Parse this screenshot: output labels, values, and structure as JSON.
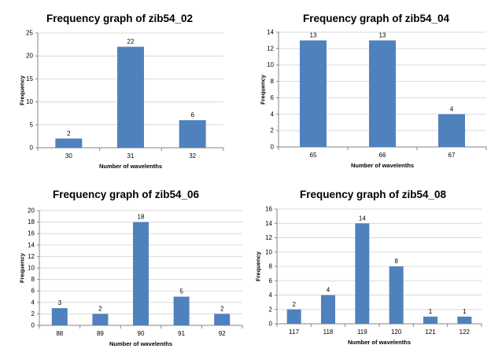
{
  "chart_data": [
    {
      "type": "bar",
      "title": "Frequency graph of zib54_02",
      "xlabel": "Number of wavelenths",
      "ylabel": "Frequency",
      "categories": [
        "30",
        "31",
        "32"
      ],
      "values": [
        2,
        22,
        6
      ],
      "ylim": [
        0,
        25
      ],
      "ytick_step": 5,
      "grid": true,
      "legend": "none",
      "bar_color": "#4f81bd"
    },
    {
      "type": "bar",
      "title": "Frequency graph of zib54_04",
      "xlabel": "Number of wavelenths",
      "ylabel": "Frequency",
      "categories": [
        "65",
        "66",
        "67"
      ],
      "values": [
        13,
        13,
        4
      ],
      "ylim": [
        0,
        14
      ],
      "ytick_step": 2,
      "grid": true,
      "legend": "none",
      "bar_color": "#4f81bd"
    },
    {
      "type": "bar",
      "title": "Frequency graph of zib54_06",
      "xlabel": "Number of wavelenths",
      "ylabel": "Frequency",
      "categories": [
        "88",
        "89",
        "90",
        "91",
        "92"
      ],
      "values": [
        3,
        2,
        18,
        5,
        2
      ],
      "ylim": [
        0,
        20
      ],
      "ytick_step": 2,
      "grid": true,
      "legend": "none",
      "bar_color": "#4f81bd"
    },
    {
      "type": "bar",
      "title": "Frequency graph of zib54_08",
      "xlabel": "Number of wavelenths",
      "ylabel": "Frequency",
      "categories": [
        "117",
        "118",
        "119",
        "120",
        "121",
        "122"
      ],
      "values": [
        2,
        4,
        14,
        8,
        1,
        1
      ],
      "ylim": [
        0,
        16
      ],
      "ytick_step": 2,
      "grid": true,
      "legend": "none",
      "bar_color": "#4f81bd"
    }
  ]
}
